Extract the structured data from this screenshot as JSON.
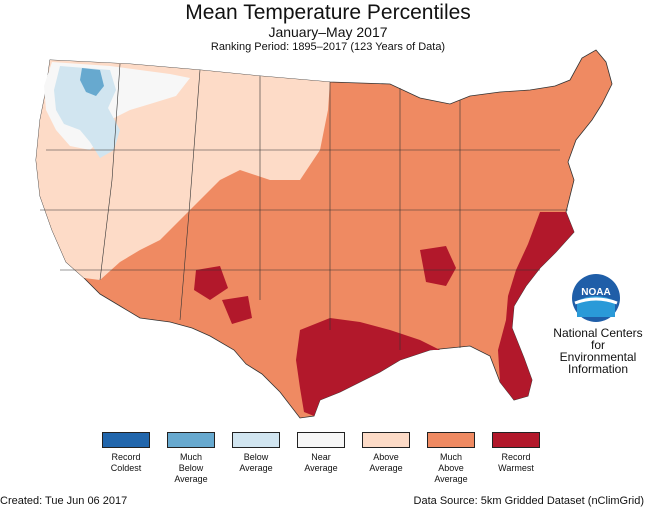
{
  "title": "Mean Temperature Percentiles",
  "subtitle": "January–May 2017",
  "ranking_period": "Ranking Period: 1895–2017 (123 Years of Data)",
  "agency": {
    "logo_text": "NOAA",
    "line1": "National Centers for",
    "line2": "Environmental",
    "line3": "Information"
  },
  "legend": [
    {
      "color": "#2166ac",
      "line1": "Record",
      "line2": "Coldest",
      "line3": ""
    },
    {
      "color": "#67a9cf",
      "line1": "Much",
      "line2": "Below",
      "line3": "Average"
    },
    {
      "color": "#d1e5f0",
      "line1": "Below",
      "line2": "Average",
      "line3": ""
    },
    {
      "color": "#f7f7f7",
      "line1": "Near",
      "line2": "Average",
      "line3": ""
    },
    {
      "color": "#fddbc7",
      "line1": "Above",
      "line2": "Average",
      "line3": ""
    },
    {
      "color": "#ef8a62",
      "line1": "Much",
      "line2": "Above",
      "line3": "Average"
    },
    {
      "color": "#b2182b",
      "line1": "Record",
      "line2": "Warmest",
      "line3": ""
    }
  ],
  "footer": {
    "created": "Created: Tue Jun 06 2017",
    "source": "Data Source: 5km Gridded Dataset (nClimGrid)"
  }
}
